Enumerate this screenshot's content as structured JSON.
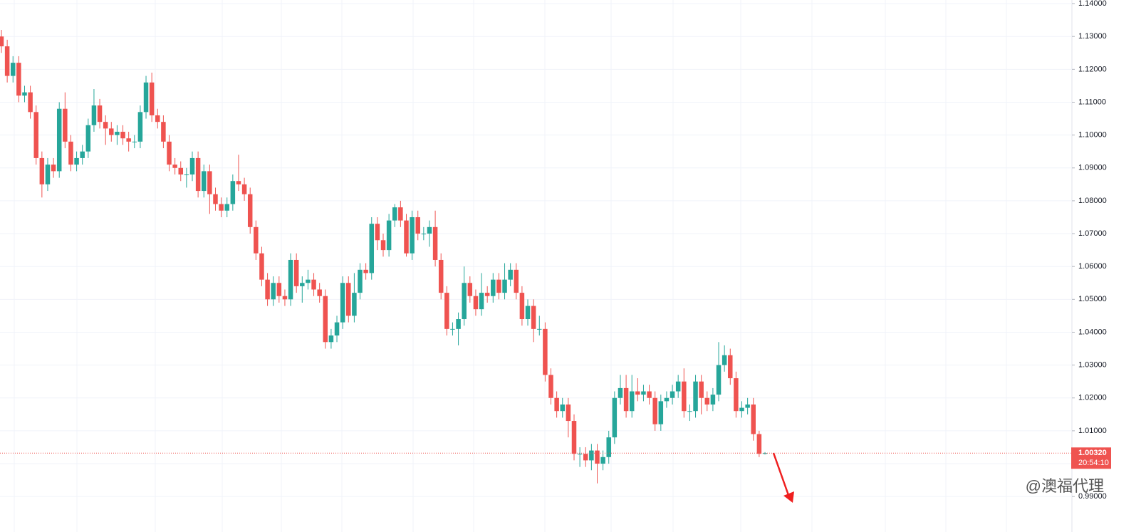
{
  "chart_data": {
    "type": "candlestick",
    "up_color": "#26a69a",
    "down_color": "#ef5350",
    "ylim": [
      0.9792,
      1.1411
    ],
    "yticks": [
      {
        "value": 0.99,
        "label": "0.99000"
      },
      {
        "value": 1.0,
        "label": "1.00000"
      },
      {
        "value": 1.01,
        "label": "1.01000"
      },
      {
        "value": 1.02,
        "label": "1.02000"
      },
      {
        "value": 1.03,
        "label": "1.03000"
      },
      {
        "value": 1.04,
        "label": "1.04000"
      },
      {
        "value": 1.05,
        "label": "1.05000"
      },
      {
        "value": 1.06,
        "label": "1.06000"
      },
      {
        "value": 1.07,
        "label": "1.07000"
      },
      {
        "value": 1.08,
        "label": "1.08000"
      },
      {
        "value": 1.09,
        "label": "1.09000"
      },
      {
        "value": 1.1,
        "label": "1.10000"
      },
      {
        "value": 1.11,
        "label": "1.11000"
      },
      {
        "value": 1.12,
        "label": "1.12000"
      },
      {
        "value": 1.13,
        "label": "1.13000"
      },
      {
        "value": 1.14,
        "label": "1.14000"
      }
    ],
    "grid": true,
    "last_price": {
      "value": 1.0032,
      "label": "1.00320"
    },
    "countdown": "20:54:10",
    "watermark": "@澳福代理",
    "open": [
      1.13,
      1.127,
      1.118,
      1.122,
      1.112,
      1.113,
      1.107,
      1.093,
      1.085,
      1.091,
      1.089,
      1.108,
      1.098,
      1.091,
      1.093,
      1.095,
      1.103,
      1.109,
      1.104,
      1.102,
      1.1,
      1.101,
      1.099,
      1.098,
      1.098,
      1.107,
      1.116,
      1.106,
      1.104,
      1.098,
      1.091,
      1.09,
      1.088,
      1.088,
      1.093,
      1.083,
      1.089,
      1.082,
      1.079,
      1.077,
      1.079,
      1.086,
      1.085,
      1.082,
      1.072,
      1.064,
      1.056,
      1.05,
      1.055,
      1.051,
      1.05,
      1.062,
      1.054,
      1.055,
      1.056,
      1.053,
      1.051,
      1.037,
      1.039,
      1.043,
      1.055,
      1.045,
      1.052,
      1.059,
      1.058,
      1.073,
      1.068,
      1.065,
      1.074,
      1.078,
      1.074,
      1.064,
      1.075,
      1.07,
      1.07,
      1.072,
      1.062,
      1.052,
      1.041,
      1.041,
      1.044,
      1.055,
      1.051,
      1.047,
      1.052,
      1.051,
      1.056,
      1.052,
      1.056,
      1.059,
      1.052,
      1.044,
      1.048,
      1.041,
      1.041,
      1.027,
      1.02,
      1.016,
      1.018,
      1.013,
      1.003,
      1.003,
      1.001,
      1.004,
      1.0,
      1.002,
      1.008,
      1.02,
      1.023,
      1.016,
      1.022,
      1.021,
      1.022,
      1.02,
      1.012,
      1.019,
      1.02,
      1.022,
      1.025,
      1.016,
      1.016,
      1.025,
      1.02,
      1.018,
      1.021,
      1.03,
      1.033,
      1.026,
      1.016,
      1.017,
      1.018,
      1.009,
      1.003
    ],
    "high": [
      1.132,
      1.129,
      1.124,
      1.124,
      1.115,
      1.115,
      1.109,
      1.095,
      1.093,
      1.093,
      1.11,
      1.113,
      1.1,
      1.095,
      1.097,
      1.105,
      1.114,
      1.111,
      1.106,
      1.104,
      1.103,
      1.103,
      1.101,
      1.1,
      1.109,
      1.118,
      1.119,
      1.108,
      1.106,
      1.1,
      1.093,
      1.092,
      1.09,
      1.095,
      1.095,
      1.091,
      1.091,
      1.084,
      1.081,
      1.081,
      1.088,
      1.094,
      1.087,
      1.084,
      1.074,
      1.066,
      1.058,
      1.057,
      1.057,
      1.053,
      1.064,
      1.064,
      1.057,
      1.059,
      1.058,
      1.055,
      1.053,
      1.041,
      1.045,
      1.057,
      1.057,
      1.058,
      1.061,
      1.061,
      1.075,
      1.075,
      1.07,
      1.076,
      1.079,
      1.08,
      1.076,
      1.077,
      1.077,
      1.072,
      1.074,
      1.077,
      1.064,
      1.054,
      1.043,
      1.046,
      1.06,
      1.057,
      1.053,
      1.058,
      1.054,
      1.058,
      1.058,
      1.061,
      1.061,
      1.061,
      1.054,
      1.05,
      1.05,
      1.045,
      1.043,
      1.029,
      1.022,
      1.02,
      1.02,
      1.015,
      1.005,
      1.005,
      1.006,
      1.006,
      1.004,
      1.01,
      1.022,
      1.027,
      1.027,
      1.027,
      1.026,
      1.024,
      1.024,
      1.022,
      1.021,
      1.022,
      1.024,
      1.027,
      1.029,
      1.018,
      1.027,
      1.027,
      1.022,
      1.023,
      1.037,
      1.036,
      1.035,
      1.028,
      1.019,
      1.02,
      1.02,
      1.01,
      1.0035
    ],
    "low": [
      1.125,
      1.116,
      1.116,
      1.11,
      1.11,
      1.105,
      1.091,
      1.081,
      1.083,
      1.087,
      1.087,
      1.096,
      1.089,
      1.089,
      1.091,
      1.093,
      1.101,
      1.102,
      1.097,
      1.098,
      1.097,
      1.097,
      1.095,
      1.096,
      1.096,
      1.105,
      1.104,
      1.102,
      1.096,
      1.089,
      1.088,
      1.086,
      1.084,
      1.086,
      1.081,
      1.081,
      1.076,
      1.077,
      1.075,
      1.075,
      1.077,
      1.083,
      1.08,
      1.07,
      1.062,
      1.054,
      1.048,
      1.048,
      1.049,
      1.048,
      1.048,
      1.052,
      1.049,
      1.053,
      1.051,
      1.049,
      1.035,
      1.035,
      1.037,
      1.041,
      1.043,
      1.043,
      1.05,
      1.056,
      1.056,
      1.065,
      1.063,
      1.063,
      1.072,
      1.072,
      1.063,
      1.062,
      1.068,
      1.068,
      1.066,
      1.06,
      1.05,
      1.039,
      1.039,
      1.036,
      1.042,
      1.049,
      1.045,
      1.045,
      1.049,
      1.049,
      1.05,
      1.05,
      1.054,
      1.05,
      1.042,
      1.042,
      1.037,
      1.039,
      1.025,
      1.018,
      1.014,
      1.014,
      1.008,
      1.001,
      0.999,
      0.999,
      0.998,
      0.994,
      0.998,
      1.0,
      1.006,
      1.018,
      1.014,
      1.014,
      1.019,
      1.019,
      1.018,
      1.01,
      1.01,
      1.017,
      1.018,
      1.02,
      1.014,
      1.013,
      1.014,
      1.015,
      1.016,
      1.016,
      1.019,
      1.028,
      1.024,
      1.014,
      1.014,
      1.015,
      1.007,
      1.002,
      1.0028
    ],
    "close": [
      1.127,
      1.118,
      1.122,
      1.112,
      1.113,
      1.107,
      1.093,
      1.085,
      1.091,
      1.089,
      1.108,
      1.098,
      1.091,
      1.093,
      1.095,
      1.103,
      1.109,
      1.104,
      1.102,
      1.1,
      1.101,
      1.099,
      1.098,
      1.098,
      1.107,
      1.116,
      1.106,
      1.104,
      1.098,
      1.091,
      1.09,
      1.088,
      1.088,
      1.093,
      1.083,
      1.089,
      1.082,
      1.079,
      1.077,
      1.079,
      1.086,
      1.085,
      1.082,
      1.072,
      1.064,
      1.056,
      1.05,
      1.055,
      1.051,
      1.05,
      1.062,
      1.054,
      1.055,
      1.056,
      1.053,
      1.051,
      1.037,
      1.039,
      1.043,
      1.055,
      1.045,
      1.052,
      1.059,
      1.058,
      1.073,
      1.068,
      1.065,
      1.074,
      1.078,
      1.074,
      1.064,
      1.075,
      1.07,
      1.07,
      1.072,
      1.062,
      1.052,
      1.041,
      1.041,
      1.044,
      1.055,
      1.051,
      1.047,
      1.052,
      1.051,
      1.056,
      1.052,
      1.056,
      1.059,
      1.052,
      1.044,
      1.048,
      1.041,
      1.041,
      1.027,
      1.02,
      1.016,
      1.018,
      1.013,
      1.003,
      1.003,
      1.001,
      1.004,
      1.0,
      1.002,
      1.008,
      1.02,
      1.023,
      1.016,
      1.022,
      1.021,
      1.022,
      1.02,
      1.012,
      1.019,
      1.02,
      1.022,
      1.025,
      1.016,
      1.016,
      1.025,
      1.02,
      1.018,
      1.021,
      1.03,
      1.033,
      1.026,
      1.016,
      1.017,
      1.018,
      1.009,
      1.003,
      1.0032
    ]
  }
}
